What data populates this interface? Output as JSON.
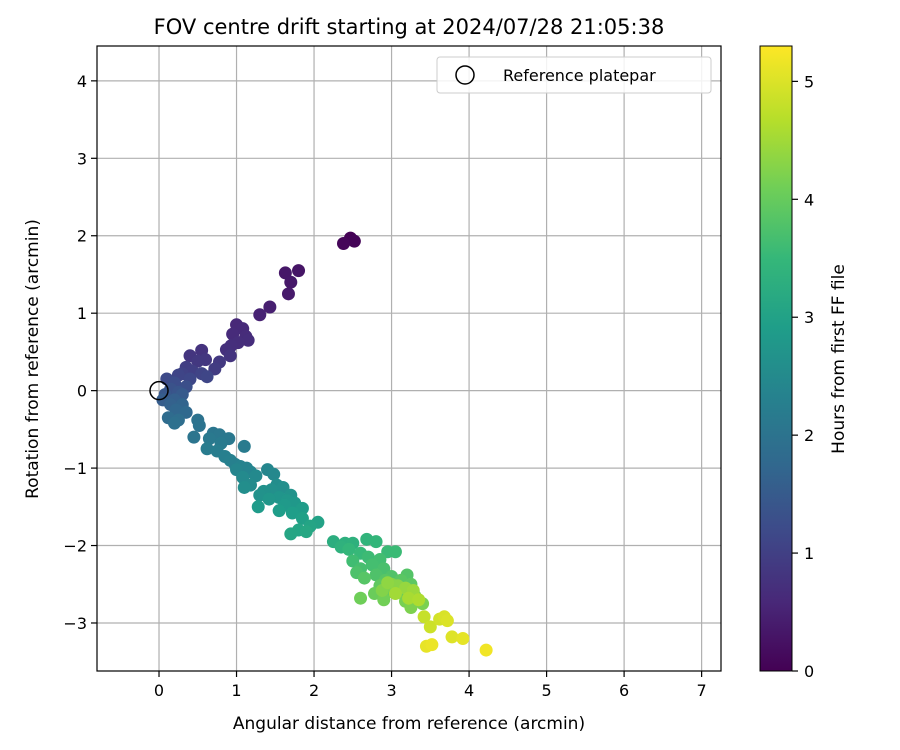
{
  "chart_data": {
    "type": "scatter",
    "title": "FOV centre drift starting at 2024/07/28 21:05:38",
    "xlabel": "Angular distance from reference (arcmin)",
    "ylabel": "Rotation from reference (arcmin)",
    "xlim": [
      -0.8,
      7.25
    ],
    "ylim": [
      -3.62,
      4.45
    ],
    "xticks": [
      "0",
      "1",
      "2",
      "3",
      "4",
      "5",
      "6",
      "7"
    ],
    "yticks": [
      "−3",
      "−2",
      "−1",
      "0",
      "1",
      "2",
      "3",
      "4"
    ],
    "grid": true,
    "legend": {
      "placement": "top-right",
      "label": "Reference platepar"
    },
    "reference_marker": {
      "x": 0,
      "y": 0
    },
    "colorbar": {
      "label": "Hours from first FF file",
      "colormap": "viridis",
      "range": [
        0,
        5.3
      ],
      "ticks": [
        "0",
        "1",
        "2",
        "3",
        "4",
        "5"
      ]
    },
    "series": [
      {
        "points": [
          {
            "x": 2.47,
            "y": 1.97,
            "c": 0.02
          },
          {
            "x": 2.52,
            "y": 1.93,
            "c": 0.05
          },
          {
            "x": 2.38,
            "y": 1.9,
            "c": 0.08
          },
          {
            "x": 1.8,
            "y": 1.55,
            "c": 0.3
          },
          {
            "x": 1.63,
            "y": 1.52,
            "c": 0.33
          },
          {
            "x": 1.7,
            "y": 1.4,
            "c": 0.35
          },
          {
            "x": 1.67,
            "y": 1.25,
            "c": 0.38
          },
          {
            "x": 1.43,
            "y": 1.08,
            "c": 0.45
          },
          {
            "x": 1.3,
            "y": 0.98,
            "c": 0.5
          },
          {
            "x": 1.0,
            "y": 0.85,
            "c": 0.6
          },
          {
            "x": 1.08,
            "y": 0.8,
            "c": 0.62
          },
          {
            "x": 0.95,
            "y": 0.73,
            "c": 0.65
          },
          {
            "x": 1.12,
            "y": 0.7,
            "c": 0.66
          },
          {
            "x": 1.15,
            "y": 0.65,
            "c": 0.68
          },
          {
            "x": 1.02,
            "y": 0.62,
            "c": 0.7
          },
          {
            "x": 0.93,
            "y": 0.58,
            "c": 0.72
          },
          {
            "x": 0.87,
            "y": 0.53,
            "c": 0.74
          },
          {
            "x": 0.55,
            "y": 0.52,
            "c": 0.78
          },
          {
            "x": 0.92,
            "y": 0.45,
            "c": 0.8
          },
          {
            "x": 0.4,
            "y": 0.45,
            "c": 0.82
          },
          {
            "x": 0.6,
            "y": 0.4,
            "c": 0.85
          },
          {
            "x": 0.5,
            "y": 0.38,
            "c": 0.88
          },
          {
            "x": 0.78,
            "y": 0.37,
            "c": 0.9
          },
          {
            "x": 0.72,
            "y": 0.28,
            "c": 0.95
          },
          {
            "x": 0.35,
            "y": 0.3,
            "c": 0.98
          },
          {
            "x": 0.43,
            "y": 0.25,
            "c": 1.0
          },
          {
            "x": 0.3,
            "y": 0.22,
            "c": 1.05
          },
          {
            "x": 0.55,
            "y": 0.22,
            "c": 1.08
          },
          {
            "x": 0.25,
            "y": 0.2,
            "c": 1.1
          },
          {
            "x": 0.62,
            "y": 0.18,
            "c": 1.12
          },
          {
            "x": 0.4,
            "y": 0.15,
            "c": 1.15
          },
          {
            "x": 0.1,
            "y": 0.15,
            "c": 1.2
          },
          {
            "x": 0.2,
            "y": 0.1,
            "c": 1.25
          },
          {
            "x": 0.35,
            "y": 0.05,
            "c": 1.3
          },
          {
            "x": 0.15,
            "y": 0.02,
            "c": 1.35
          },
          {
            "x": 0.25,
            "y": -0.02,
            "c": 1.4
          },
          {
            "x": 0.08,
            "y": -0.05,
            "c": 1.45
          },
          {
            "x": 0.3,
            "y": -0.05,
            "c": 1.5
          },
          {
            "x": 0.05,
            "y": -0.12,
            "c": 1.55
          },
          {
            "x": 0.2,
            "y": -0.12,
            "c": 1.6
          },
          {
            "x": 0.15,
            "y": -0.18,
            "c": 1.65
          },
          {
            "x": 0.3,
            "y": -0.18,
            "c": 1.7
          },
          {
            "x": 0.22,
            "y": -0.25,
            "c": 1.75
          },
          {
            "x": 0.35,
            "y": -0.28,
            "c": 1.8
          },
          {
            "x": 0.12,
            "y": -0.35,
            "c": 1.85
          },
          {
            "x": 0.25,
            "y": -0.38,
            "c": 1.9
          },
          {
            "x": 0.2,
            "y": -0.42,
            "c": 1.95
          },
          {
            "x": 0.5,
            "y": -0.38,
            "c": 2.0
          },
          {
            "x": 0.52,
            "y": -0.45,
            "c": 2.02
          },
          {
            "x": 0.45,
            "y": -0.6,
            "c": 2.05
          },
          {
            "x": 0.7,
            "y": -0.55,
            "c": 2.08
          },
          {
            "x": 0.78,
            "y": -0.57,
            "c": 2.1
          },
          {
            "x": 0.9,
            "y": -0.62,
            "c": 2.12
          },
          {
            "x": 0.65,
            "y": -0.62,
            "c": 2.15
          },
          {
            "x": 0.8,
            "y": -0.68,
            "c": 2.18
          },
          {
            "x": 1.1,
            "y": -0.72,
            "c": 2.2
          },
          {
            "x": 0.62,
            "y": -0.75,
            "c": 2.22
          },
          {
            "x": 0.75,
            "y": -0.78,
            "c": 2.25
          },
          {
            "x": 0.85,
            "y": -0.85,
            "c": 2.28
          },
          {
            "x": 0.92,
            "y": -0.9,
            "c": 2.3
          },
          {
            "x": 0.98,
            "y": -0.95,
            "c": 2.32
          },
          {
            "x": 1.05,
            "y": -0.98,
            "c": 2.35
          },
          {
            "x": 1.13,
            "y": -1.0,
            "c": 2.38
          },
          {
            "x": 1.18,
            "y": -1.05,
            "c": 2.4
          },
          {
            "x": 1.0,
            "y": -1.02,
            "c": 2.42
          },
          {
            "x": 1.4,
            "y": -1.02,
            "c": 2.45
          },
          {
            "x": 1.48,
            "y": -1.08,
            "c": 2.48
          },
          {
            "x": 1.25,
            "y": -1.1,
            "c": 2.5
          },
          {
            "x": 1.08,
            "y": -1.12,
            "c": 2.52
          },
          {
            "x": 1.18,
            "y": -1.22,
            "c": 2.55
          },
          {
            "x": 1.52,
            "y": -1.22,
            "c": 2.58
          },
          {
            "x": 1.1,
            "y": -1.25,
            "c": 2.6
          },
          {
            "x": 1.6,
            "y": -1.25,
            "c": 2.62
          },
          {
            "x": 1.45,
            "y": -1.28,
            "c": 2.65
          },
          {
            "x": 1.35,
            "y": -1.3,
            "c": 2.68
          },
          {
            "x": 1.3,
            "y": -1.35,
            "c": 2.7
          },
          {
            "x": 1.7,
            "y": -1.35,
            "c": 2.72
          },
          {
            "x": 1.55,
            "y": -1.38,
            "c": 2.75
          },
          {
            "x": 1.42,
            "y": -1.4,
            "c": 2.78
          },
          {
            "x": 1.65,
            "y": -1.42,
            "c": 2.8
          },
          {
            "x": 1.75,
            "y": -1.45,
            "c": 2.82
          },
          {
            "x": 1.62,
            "y": -1.48,
            "c": 2.85
          },
          {
            "x": 1.28,
            "y": -1.5,
            "c": 2.88
          },
          {
            "x": 1.85,
            "y": -1.52,
            "c": 2.9
          },
          {
            "x": 1.55,
            "y": -1.55,
            "c": 2.92
          },
          {
            "x": 1.72,
            "y": -1.58,
            "c": 2.95
          },
          {
            "x": 1.85,
            "y": -1.65,
            "c": 3.0
          },
          {
            "x": 2.05,
            "y": -1.7,
            "c": 3.05
          },
          {
            "x": 1.95,
            "y": -1.75,
            "c": 3.08
          },
          {
            "x": 1.8,
            "y": -1.8,
            "c": 3.1
          },
          {
            "x": 1.7,
            "y": -1.85,
            "c": 3.12
          },
          {
            "x": 1.9,
            "y": -1.82,
            "c": 3.15
          },
          {
            "x": 2.25,
            "y": -1.95,
            "c": 3.3
          },
          {
            "x": 2.4,
            "y": -1.97,
            "c": 3.35
          },
          {
            "x": 2.5,
            "y": -1.97,
            "c": 3.38
          },
          {
            "x": 2.35,
            "y": -2.02,
            "c": 3.4
          },
          {
            "x": 2.68,
            "y": -1.92,
            "c": 3.45
          },
          {
            "x": 2.8,
            "y": -1.95,
            "c": 3.48
          },
          {
            "x": 2.45,
            "y": -2.05,
            "c": 3.5
          },
          {
            "x": 2.6,
            "y": -2.1,
            "c": 3.55
          },
          {
            "x": 2.95,
            "y": -2.08,
            "c": 3.58
          },
          {
            "x": 3.05,
            "y": -2.08,
            "c": 3.6
          },
          {
            "x": 2.7,
            "y": -2.15,
            "c": 3.62
          },
          {
            "x": 2.5,
            "y": -2.2,
            "c": 3.65
          },
          {
            "x": 2.85,
            "y": -2.18,
            "c": 3.68
          },
          {
            "x": 2.75,
            "y": -2.25,
            "c": 3.7
          },
          {
            "x": 2.6,
            "y": -2.3,
            "c": 3.72
          },
          {
            "x": 2.9,
            "y": -2.3,
            "c": 3.75
          },
          {
            "x": 2.55,
            "y": -2.35,
            "c": 3.78
          },
          {
            "x": 2.8,
            "y": -2.38,
            "c": 3.8
          },
          {
            "x": 3.0,
            "y": -2.4,
            "c": 3.82
          },
          {
            "x": 3.2,
            "y": -2.38,
            "c": 3.85
          },
          {
            "x": 2.65,
            "y": -2.42,
            "c": 3.88
          },
          {
            "x": 2.92,
            "y": -2.45,
            "c": 3.9
          },
          {
            "x": 3.12,
            "y": -2.45,
            "c": 3.92
          },
          {
            "x": 3.25,
            "y": -2.5,
            "c": 3.95
          },
          {
            "x": 2.85,
            "y": -2.52,
            "c": 3.98
          },
          {
            "x": 3.05,
            "y": -2.55,
            "c": 4.0
          },
          {
            "x": 2.95,
            "y": -2.6,
            "c": 4.05
          },
          {
            "x": 2.78,
            "y": -2.62,
            "c": 4.08
          },
          {
            "x": 3.15,
            "y": -2.62,
            "c": 4.1
          },
          {
            "x": 2.6,
            "y": -2.68,
            "c": 4.12
          },
          {
            "x": 2.9,
            "y": -2.7,
            "c": 4.15
          },
          {
            "x": 3.3,
            "y": -2.65,
            "c": 4.18
          },
          {
            "x": 3.18,
            "y": -2.72,
            "c": 4.2
          },
          {
            "x": 3.4,
            "y": -2.75,
            "c": 4.22
          },
          {
            "x": 3.25,
            "y": -2.8,
            "c": 4.25
          },
          {
            "x": 3.0,
            "y": -2.5,
            "c": 4.28
          },
          {
            "x": 2.88,
            "y": -2.58,
            "c": 4.3
          },
          {
            "x": 3.08,
            "y": -2.52,
            "c": 4.35
          },
          {
            "x": 2.95,
            "y": -2.48,
            "c": 4.4
          },
          {
            "x": 3.18,
            "y": -2.55,
            "c": 4.45
          },
          {
            "x": 3.28,
            "y": -2.58,
            "c": 4.5
          },
          {
            "x": 3.05,
            "y": -2.62,
            "c": 4.55
          },
          {
            "x": 3.22,
            "y": -2.68,
            "c": 4.6
          },
          {
            "x": 3.35,
            "y": -2.7,
            "c": 4.65
          },
          {
            "x": 3.42,
            "y": -2.92,
            "c": 4.85
          },
          {
            "x": 3.5,
            "y": -3.05,
            "c": 4.9
          },
          {
            "x": 3.62,
            "y": -2.95,
            "c": 4.95
          },
          {
            "x": 3.68,
            "y": -2.92,
            "c": 5.0
          },
          {
            "x": 3.72,
            "y": -2.97,
            "c": 5.02
          },
          {
            "x": 3.78,
            "y": -3.18,
            "c": 5.05
          },
          {
            "x": 3.92,
            "y": -3.2,
            "c": 5.1
          },
          {
            "x": 3.45,
            "y": -3.3,
            "c": 5.12
          },
          {
            "x": 3.52,
            "y": -3.28,
            "c": 5.15
          },
          {
            "x": 4.22,
            "y": -3.35,
            "c": 5.2
          }
        ]
      }
    ]
  }
}
